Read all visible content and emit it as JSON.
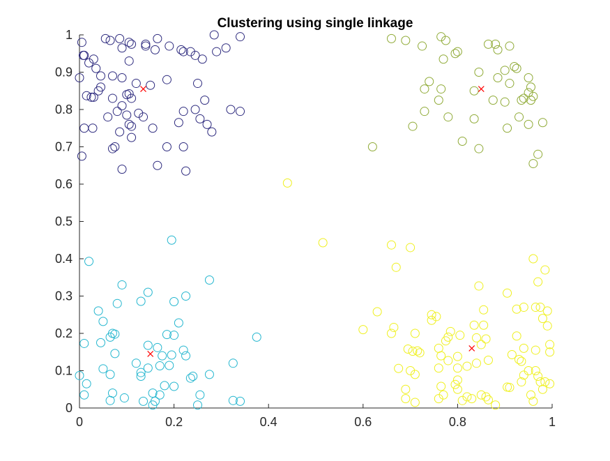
{
  "chart_data": {
    "type": "scatter",
    "title": "Clustering using single linkage",
    "xlabel": "",
    "ylabel": "",
    "xlim": [
      0,
      1
    ],
    "ylim": [
      0,
      1
    ],
    "xticks": [
      "0",
      "0.2",
      "0.4",
      "0.6",
      "0.8",
      "1"
    ],
    "yticks": [
      "0",
      "0.1",
      "0.2",
      "0.3",
      "0.4",
      "0.5",
      "0.6",
      "0.7",
      "0.8",
      "0.9",
      "1"
    ],
    "grid": false,
    "legend": "none",
    "series": [
      {
        "color": "#2d2a7e",
        "marker": "circle",
        "points": [
          [
            0.005,
            0.98
          ],
          [
            0.01,
            0.945
          ],
          [
            0.008,
            0.945
          ],
          [
            0.03,
            0.935
          ],
          [
            0.02,
            0.925
          ],
          [
            0.035,
            0.91
          ],
          [
            0.045,
            0.89
          ],
          [
            0.0,
            0.885
          ],
          [
            0.045,
            0.86
          ],
          [
            0.04,
            0.85
          ],
          [
            0.015,
            0.837
          ],
          [
            0.025,
            0.833
          ],
          [
            0.03,
            0.833
          ],
          [
            0.055,
            0.99
          ],
          [
            0.085,
            0.99
          ],
          [
            0.065,
            0.985
          ],
          [
            0.105,
            0.98
          ],
          [
            0.11,
            0.975
          ],
          [
            0.14,
            0.97
          ],
          [
            0.14,
            0.975
          ],
          [
            0.16,
            0.96
          ],
          [
            0.165,
            0.99
          ],
          [
            0.19,
            0.97
          ],
          [
            0.215,
            0.96
          ],
          [
            0.22,
            0.955
          ],
          [
            0.235,
            0.955
          ],
          [
            0.245,
            0.945
          ],
          [
            0.26,
            0.935
          ],
          [
            0.285,
            1.0
          ],
          [
            0.29,
            0.955
          ],
          [
            0.31,
            0.965
          ],
          [
            0.34,
            0.995
          ],
          [
            0.09,
            0.965
          ],
          [
            0.105,
            0.93
          ],
          [
            0.07,
            0.89
          ],
          [
            0.09,
            0.885
          ],
          [
            0.12,
            0.87
          ],
          [
            0.15,
            0.865
          ],
          [
            0.1,
            0.84
          ],
          [
            0.105,
            0.842
          ],
          [
            0.11,
            0.83
          ],
          [
            0.07,
            0.83
          ],
          [
            0.09,
            0.81
          ],
          [
            0.08,
            0.795
          ],
          [
            0.1,
            0.785
          ],
          [
            0.06,
            0.78
          ],
          [
            0.105,
            0.76
          ],
          [
            0.11,
            0.755
          ],
          [
            0.125,
            0.79
          ],
          [
            0.135,
            0.78
          ],
          [
            0.085,
            0.74
          ],
          [
            0.11,
            0.725
          ],
          [
            0.01,
            0.75
          ],
          [
            0.028,
            0.75
          ],
          [
            0.075,
            0.7
          ],
          [
            0.07,
            0.695
          ],
          [
            0.005,
            0.675
          ],
          [
            0.09,
            0.64
          ],
          [
            0.165,
            0.65
          ],
          [
            0.155,
            0.75
          ],
          [
            0.185,
            0.7
          ],
          [
            0.22,
            0.7
          ],
          [
            0.225,
            0.635
          ],
          [
            0.185,
            0.88
          ],
          [
            0.25,
            0.87
          ],
          [
            0.265,
            0.825
          ],
          [
            0.22,
            0.795
          ],
          [
            0.245,
            0.8
          ],
          [
            0.255,
            0.775
          ],
          [
            0.21,
            0.765
          ],
          [
            0.27,
            0.76
          ],
          [
            0.28,
            0.74
          ],
          [
            0.32,
            0.8
          ],
          [
            0.34,
            0.795
          ]
        ]
      },
      {
        "color": "#8faa36",
        "marker": "circle",
        "points": [
          [
            0.66,
            0.99
          ],
          [
            0.69,
            0.985
          ],
          [
            0.725,
            0.97
          ],
          [
            0.765,
            0.995
          ],
          [
            0.775,
            0.985
          ],
          [
            0.795,
            0.95
          ],
          [
            0.8,
            0.955
          ],
          [
            0.77,
            0.935
          ],
          [
            0.865,
            0.975
          ],
          [
            0.88,
            0.975
          ],
          [
            0.885,
            0.96
          ],
          [
            0.91,
            0.97
          ],
          [
            0.9,
            0.905
          ],
          [
            0.92,
            0.915
          ],
          [
            0.925,
            0.91
          ],
          [
            0.885,
            0.885
          ],
          [
            0.91,
            0.87
          ],
          [
            0.95,
            0.885
          ],
          [
            0.955,
            0.86
          ],
          [
            0.95,
            0.845
          ],
          [
            0.935,
            0.825
          ],
          [
            0.94,
            0.83
          ],
          [
            0.955,
            0.825
          ],
          [
            0.96,
            0.835
          ],
          [
            0.845,
            0.9
          ],
          [
            0.835,
            0.85
          ],
          [
            0.875,
            0.825
          ],
          [
            0.9,
            0.82
          ],
          [
            0.93,
            0.78
          ],
          [
            0.95,
            0.76
          ],
          [
            0.98,
            0.765
          ],
          [
            0.905,
            0.75
          ],
          [
            0.74,
            0.875
          ],
          [
            0.73,
            0.855
          ],
          [
            0.765,
            0.855
          ],
          [
            0.76,
            0.825
          ],
          [
            0.73,
            0.795
          ],
          [
            0.78,
            0.78
          ],
          [
            0.835,
            0.775
          ],
          [
            0.81,
            0.715
          ],
          [
            0.845,
            0.695
          ],
          [
            0.705,
            0.755
          ],
          [
            0.62,
            0.7
          ],
          [
            0.97,
            0.68
          ],
          [
            0.96,
            0.655
          ]
        ]
      },
      {
        "color": "#24b6cf",
        "marker": "circle",
        "points": [
          [
            0.195,
            0.45
          ],
          [
            0.02,
            0.393
          ],
          [
            0.275,
            0.343
          ],
          [
            0.09,
            0.33
          ],
          [
            0.145,
            0.31
          ],
          [
            0.225,
            0.3
          ],
          [
            0.13,
            0.286
          ],
          [
            0.08,
            0.28
          ],
          [
            0.2,
            0.285
          ],
          [
            0.04,
            0.26
          ],
          [
            0.05,
            0.232
          ],
          [
            0.21,
            0.228
          ],
          [
            0.07,
            0.2
          ],
          [
            0.075,
            0.198
          ],
          [
            0.065,
            0.19
          ],
          [
            0.185,
            0.197
          ],
          [
            0.2,
            0.195
          ],
          [
            0.375,
            0.19
          ],
          [
            0.045,
            0.175
          ],
          [
            0.01,
            0.173
          ],
          [
            0.145,
            0.168
          ],
          [
            0.165,
            0.162
          ],
          [
            0.22,
            0.155
          ],
          [
            0.225,
            0.14
          ],
          [
            0.075,
            0.146
          ],
          [
            0.195,
            0.142
          ],
          [
            0.175,
            0.14
          ],
          [
            0.12,
            0.12
          ],
          [
            0.05,
            0.105
          ],
          [
            0.145,
            0.107
          ],
          [
            0.17,
            0.113
          ],
          [
            0.19,
            0.114
          ],
          [
            0.235,
            0.08
          ],
          [
            0.24,
            0.085
          ],
          [
            0.275,
            0.09
          ],
          [
            0.13,
            0.095
          ],
          [
            0.13,
            0.085
          ],
          [
            0.065,
            0.09
          ],
          [
            0.0,
            0.087
          ],
          [
            0.015,
            0.065
          ],
          [
            0.325,
            0.12
          ],
          [
            0.18,
            0.06
          ],
          [
            0.2,
            0.058
          ],
          [
            0.01,
            0.035
          ],
          [
            0.07,
            0.04
          ],
          [
            0.155,
            0.04
          ],
          [
            0.17,
            0.035
          ],
          [
            0.095,
            0.027
          ],
          [
            0.065,
            0.02
          ],
          [
            0.135,
            0.018
          ],
          [
            0.16,
            0.018
          ],
          [
            0.155,
            0.008
          ],
          [
            0.255,
            0.035
          ],
          [
            0.25,
            0.008
          ],
          [
            0.325,
            0.02
          ],
          [
            0.34,
            0.018
          ]
        ]
      },
      {
        "color": "#eff01f",
        "marker": "circle",
        "points": [
          [
            0.44,
            0.603
          ],
          [
            0.515,
            0.443
          ],
          [
            0.66,
            0.437
          ],
          [
            0.7,
            0.43
          ],
          [
            0.67,
            0.377
          ],
          [
            0.96,
            0.4
          ],
          [
            0.985,
            0.37
          ],
          [
            0.97,
            0.338
          ],
          [
            0.845,
            0.327
          ],
          [
            0.905,
            0.308
          ],
          [
            0.63,
            0.258
          ],
          [
            0.855,
            0.263
          ],
          [
            0.925,
            0.265
          ],
          [
            0.94,
            0.27
          ],
          [
            0.965,
            0.27
          ],
          [
            0.975,
            0.27
          ],
          [
            0.99,
            0.26
          ],
          [
            0.745,
            0.25
          ],
          [
            0.755,
            0.245
          ],
          [
            0.745,
            0.235
          ],
          [
            0.98,
            0.24
          ],
          [
            0.835,
            0.222
          ],
          [
            0.855,
            0.222
          ],
          [
            0.99,
            0.22
          ],
          [
            0.665,
            0.216
          ],
          [
            0.6,
            0.21
          ],
          [
            0.66,
            0.2
          ],
          [
            0.71,
            0.2
          ],
          [
            0.785,
            0.205
          ],
          [
            0.805,
            0.195
          ],
          [
            0.78,
            0.19
          ],
          [
            0.775,
            0.18
          ],
          [
            0.84,
            0.188
          ],
          [
            0.86,
            0.185
          ],
          [
            0.925,
            0.193
          ],
          [
            0.85,
            0.17
          ],
          [
            0.76,
            0.16
          ],
          [
            0.695,
            0.158
          ],
          [
            0.705,
            0.152
          ],
          [
            0.715,
            0.153
          ],
          [
            0.72,
            0.148
          ],
          [
            0.765,
            0.14
          ],
          [
            0.8,
            0.138
          ],
          [
            0.78,
            0.127
          ],
          [
            0.94,
            0.16
          ],
          [
            0.965,
            0.155
          ],
          [
            0.995,
            0.17
          ],
          [
            0.995,
            0.15
          ],
          [
            0.915,
            0.143
          ],
          [
            0.93,
            0.13
          ],
          [
            0.935,
            0.125
          ],
          [
            0.76,
            0.107
          ],
          [
            0.8,
            0.107
          ],
          [
            0.82,
            0.112
          ],
          [
            0.84,
            0.12
          ],
          [
            0.865,
            0.128
          ],
          [
            0.675,
            0.106
          ],
          [
            0.7,
            0.1
          ],
          [
            0.71,
            0.09
          ],
          [
            0.95,
            0.1
          ],
          [
            0.965,
            0.1
          ],
          [
            0.97,
            0.085
          ],
          [
            0.975,
            0.07
          ],
          [
            0.985,
            0.07
          ],
          [
            0.995,
            0.065
          ],
          [
            0.94,
            0.088
          ],
          [
            0.935,
            0.07
          ],
          [
            0.905,
            0.056
          ],
          [
            0.91,
            0.055
          ],
          [
            0.8,
            0.075
          ],
          [
            0.795,
            0.063
          ],
          [
            0.765,
            0.058
          ],
          [
            0.8,
            0.05
          ],
          [
            0.69,
            0.05
          ],
          [
            0.85,
            0.035
          ],
          [
            0.86,
            0.03
          ],
          [
            0.82,
            0.03
          ],
          [
            0.81,
            0.02
          ],
          [
            0.83,
            0.025
          ],
          [
            0.865,
            0.022
          ],
          [
            0.77,
            0.035
          ],
          [
            0.76,
            0.025
          ],
          [
            0.69,
            0.025
          ],
          [
            0.71,
            0.015
          ],
          [
            0.955,
            0.035
          ],
          [
            0.96,
            0.018
          ],
          [
            0.88,
            0.008
          ],
          [
            0.98,
            0.05
          ]
        ]
      }
    ],
    "centroids": {
      "color": "#ff0000",
      "marker": "x",
      "points": [
        [
          0.135,
          0.855
        ],
        [
          0.85,
          0.855
        ],
        [
          0.15,
          0.145
        ],
        [
          0.83,
          0.16
        ]
      ]
    }
  }
}
